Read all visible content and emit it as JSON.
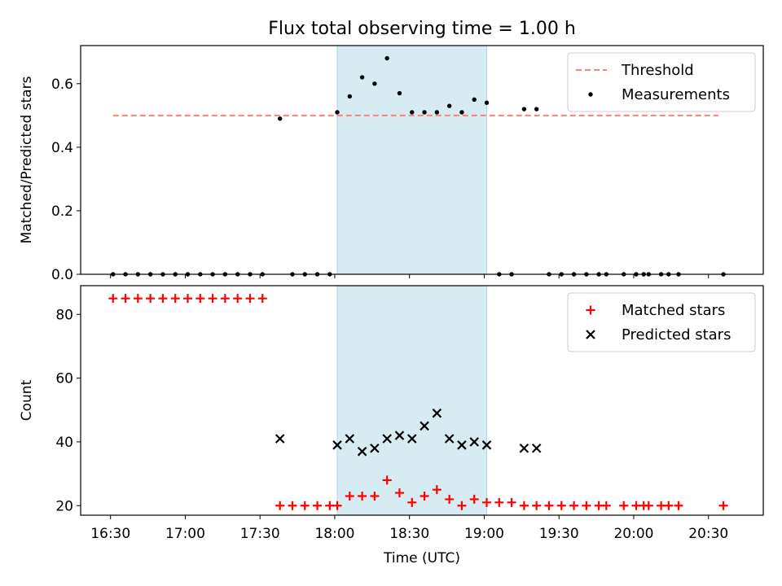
{
  "figure": {
    "title": "Flux total observing time = 1.00 h",
    "xlabel": "Time (UTC)",
    "xticks": [
      "16:30",
      "17:00",
      "17:30",
      "18:00",
      "18:30",
      "19:00",
      "19:30",
      "20:00",
      "20:30"
    ]
  },
  "colors": {
    "band": "#add8e6",
    "threshold": "#ff7f7f",
    "matched": "#ff0000",
    "predicted": "#000000"
  },
  "chart_data": [
    {
      "type": "scatter",
      "ylabel": "Matched/Predicted stars",
      "ylim": [
        0,
        0.72
      ],
      "yticks": [
        "0.0",
        "0.2",
        "0.4",
        "0.6"
      ],
      "xlim": [
        "16:18",
        "20:52"
      ],
      "shaded_interval": [
        "18:01",
        "19:01"
      ],
      "legend_position": "upper right",
      "threshold": {
        "name": "Threshold",
        "x": [
          "16:31",
          "20:34"
        ],
        "value": 0.5
      },
      "series": [
        {
          "name": "Measurements",
          "points": [
            [
              "16:31",
              0.0
            ],
            [
              "16:36",
              0.0
            ],
            [
              "16:41",
              0.0
            ],
            [
              "16:46",
              0.0
            ],
            [
              "16:51",
              0.0
            ],
            [
              "16:56",
              0.0
            ],
            [
              "17:01",
              0.0
            ],
            [
              "17:06",
              0.0
            ],
            [
              "17:11",
              0.0
            ],
            [
              "17:16",
              0.0
            ],
            [
              "17:21",
              0.0
            ],
            [
              "17:26",
              0.0
            ],
            [
              "17:31",
              0.0
            ],
            [
              "17:38",
              0.49
            ],
            [
              "17:43",
              0.0
            ],
            [
              "17:48",
              0.0
            ],
            [
              "17:53",
              0.0
            ],
            [
              "17:58",
              0.0
            ],
            [
              "18:01",
              0.51
            ],
            [
              "18:06",
              0.56
            ],
            [
              "18:11",
              0.62
            ],
            [
              "18:16",
              0.6
            ],
            [
              "18:21",
              0.68
            ],
            [
              "18:26",
              0.57
            ],
            [
              "18:31",
              0.51
            ],
            [
              "18:36",
              0.51
            ],
            [
              "18:41",
              0.51
            ],
            [
              "18:46",
              0.53
            ],
            [
              "18:51",
              0.51
            ],
            [
              "18:56",
              0.55
            ],
            [
              "19:01",
              0.54
            ],
            [
              "19:06",
              0.0
            ],
            [
              "19:11",
              0.0
            ],
            [
              "19:16",
              0.52
            ],
            [
              "19:21",
              0.52
            ],
            [
              "19:26",
              0.0
            ],
            [
              "19:31",
              0.0
            ],
            [
              "19:36",
              0.0
            ],
            [
              "19:41",
              0.0
            ],
            [
              "19:46",
              0.0
            ],
            [
              "19:49",
              0.0
            ],
            [
              "19:56",
              0.0
            ],
            [
              "20:01",
              0.0
            ],
            [
              "20:04",
              0.0
            ],
            [
              "20:06",
              0.0
            ],
            [
              "20:11",
              0.0
            ],
            [
              "20:14",
              0.0
            ],
            [
              "20:18",
              0.0
            ],
            [
              "20:36",
              0.0
            ]
          ]
        }
      ]
    },
    {
      "type": "scatter",
      "ylabel": "Count",
      "ylim": [
        17,
        89
      ],
      "yticks": [
        "20",
        "40",
        "60",
        "80"
      ],
      "xlim": [
        "16:18",
        "20:52"
      ],
      "shaded_interval": [
        "18:01",
        "19:01"
      ],
      "legend_position": "upper right",
      "series": [
        {
          "name": "Matched stars",
          "marker": "plus",
          "points": [
            [
              "16:31",
              85
            ],
            [
              "16:36",
              85
            ],
            [
              "16:41",
              85
            ],
            [
              "16:46",
              85
            ],
            [
              "16:51",
              85
            ],
            [
              "16:56",
              85
            ],
            [
              "17:01",
              85
            ],
            [
              "17:06",
              85
            ],
            [
              "17:11",
              85
            ],
            [
              "17:16",
              85
            ],
            [
              "17:21",
              85
            ],
            [
              "17:26",
              85
            ],
            [
              "17:31",
              85
            ],
            [
              "17:38",
              20
            ],
            [
              "17:43",
              20
            ],
            [
              "17:48",
              20
            ],
            [
              "17:53",
              20
            ],
            [
              "17:58",
              20
            ],
            [
              "18:01",
              20
            ],
            [
              "18:06",
              23
            ],
            [
              "18:11",
              23
            ],
            [
              "18:16",
              23
            ],
            [
              "18:21",
              28
            ],
            [
              "18:26",
              24
            ],
            [
              "18:31",
              21
            ],
            [
              "18:36",
              23
            ],
            [
              "18:41",
              25
            ],
            [
              "18:46",
              22
            ],
            [
              "18:51",
              20
            ],
            [
              "18:56",
              22
            ],
            [
              "19:01",
              21
            ],
            [
              "19:06",
              21
            ],
            [
              "19:11",
              21
            ],
            [
              "19:16",
              20
            ],
            [
              "19:21",
              20
            ],
            [
              "19:26",
              20
            ],
            [
              "19:31",
              20
            ],
            [
              "19:36",
              20
            ],
            [
              "19:41",
              20
            ],
            [
              "19:46",
              20
            ],
            [
              "19:49",
              20
            ],
            [
              "19:56",
              20
            ],
            [
              "20:01",
              20
            ],
            [
              "20:04",
              20
            ],
            [
              "20:06",
              20
            ],
            [
              "20:11",
              20
            ],
            [
              "20:14",
              20
            ],
            [
              "20:18",
              20
            ],
            [
              "20:36",
              20
            ]
          ]
        },
        {
          "name": "Predicted stars",
          "marker": "x",
          "points": [
            [
              "17:38",
              41
            ],
            [
              "18:01",
              39
            ],
            [
              "18:06",
              41
            ],
            [
              "18:11",
              37
            ],
            [
              "18:16",
              38
            ],
            [
              "18:21",
              41
            ],
            [
              "18:26",
              42
            ],
            [
              "18:31",
              41
            ],
            [
              "18:36",
              45
            ],
            [
              "18:41",
              49
            ],
            [
              "18:46",
              41
            ],
            [
              "18:51",
              39
            ],
            [
              "18:56",
              40
            ],
            [
              "19:01",
              39
            ],
            [
              "19:16",
              38
            ],
            [
              "19:21",
              38
            ]
          ]
        }
      ]
    }
  ]
}
